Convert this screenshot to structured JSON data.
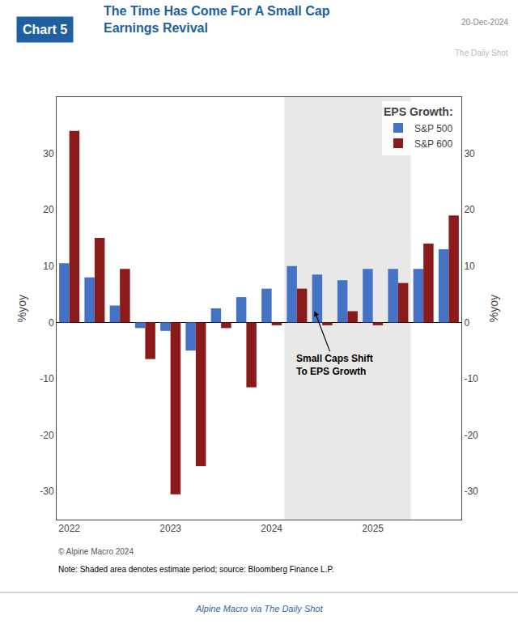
{
  "chart_data": {
    "type": "bar",
    "chart_label": "Chart 5",
    "title": "The Time Has Come For A Small Cap\nEarnings Revival",
    "date": "20-Dec-2024",
    "watermark": "The Daily Shot",
    "ylabel": "%yoy",
    "y2label": "%yoy",
    "note": "Note: Shaded area denotes estimate period; source: Bloomberg Finance L.P.",
    "footer": "Alpine Macro via The Daily Shot",
    "copyright": "© Alpine Macro 2024",
    "legend_title": "EPS Growth:",
    "categories": [
      "2022",
      null,
      null,
      null,
      "2023",
      null,
      null,
      null,
      "2024",
      null,
      null,
      null,
      "2025",
      null,
      null,
      null
    ],
    "series": [
      {
        "name": "S&P 500",
        "color": "#4472C4",
        "values": [
          10.5,
          8.0,
          3.0,
          -1.0,
          -1.5,
          -5.0,
          2.5,
          4.5,
          6.0,
          10.0,
          8.5,
          7.5,
          9.5,
          9.5,
          9.5,
          13.0
        ]
      },
      {
        "name": "S&P 600",
        "color": "#8B1A1A",
        "values": [
          34.0,
          15.0,
          9.5,
          -6.5,
          -30.5,
          -25.5,
          -1.0,
          -11.5,
          -0.5,
          6.0,
          -0.5,
          2.0,
          -0.5,
          7.0,
          14.0,
          19.0
        ]
      }
    ],
    "ylim": [
      -35,
      40
    ],
    "yticks": [
      -30,
      -20,
      -10,
      0,
      10,
      20,
      30
    ],
    "y2lim": [
      -35,
      40
    ],
    "y2ticks": [
      -30,
      -20,
      -10,
      0,
      10,
      20,
      30
    ],
    "grid": false,
    "legend": "upper right",
    "shade": {
      "from": 8.5,
      "to": 13.5,
      "color": "#E8E8E8"
    },
    "annotations": [
      {
        "text": "Small Caps Shift\nTo EPS Growth",
        "x": 9.7,
        "y": 2.0,
        "text_x": 10.5,
        "text_y": -7.5
      }
    ]
  }
}
